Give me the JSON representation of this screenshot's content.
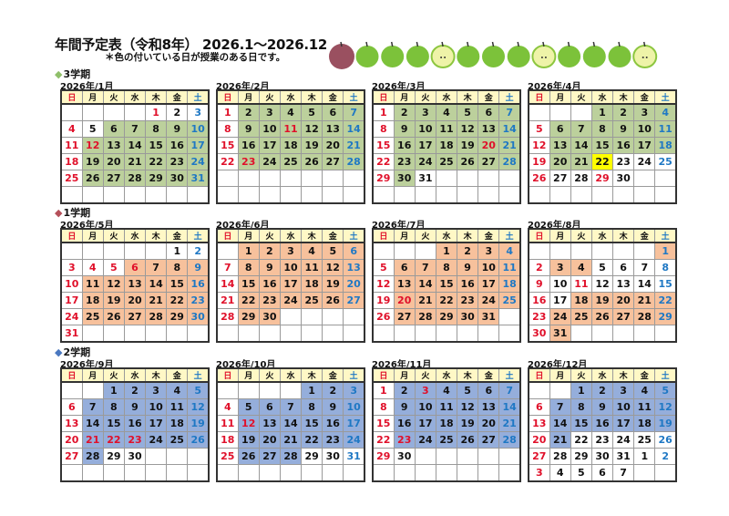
{
  "title": "年間予定表（令和8年） 2026.1～2026.12",
  "note": "＊色の付いている日が授業のある日です。",
  "weekday_headers": [
    "日",
    "月",
    "火",
    "水",
    "木",
    "金",
    "土"
  ],
  "colors": {
    "term3": "#bcd09c",
    "term1": "#f7c19c",
    "term2": "#95aedb",
    "special": "#ffff00",
    "sunday": "#e0102a",
    "saturday": "#1f78c4",
    "header": "#fff8c6"
  },
  "apples": [
    "red-apple",
    "green-apple",
    "green-apple",
    "green-apple",
    "cut-green-apple",
    "green-apple",
    "green-apple",
    "green-apple",
    "cut-green-apple",
    "green-apple",
    "green-apple",
    "green-apple",
    "cut-green-apple"
  ],
  "terms": [
    {
      "label": "3学期",
      "diamond_color": "#8fbf6a",
      "color_key": "term3",
      "months": [
        {
          "label": "2026年/1月",
          "weeks": [
            [
              0,
              0,
              0,
              0,
              1,
              2,
              3
            ],
            [
              4,
              5,
              6,
              7,
              8,
              9,
              10
            ],
            [
              11,
              12,
              13,
              14,
              15,
              16,
              17
            ],
            [
              18,
              19,
              20,
              21,
              22,
              23,
              24
            ],
            [
              25,
              26,
              27,
              28,
              29,
              30,
              31
            ],
            [
              0,
              0,
              0,
              0,
              0,
              0,
              0
            ]
          ],
          "shade": [
            "0000000",
            "0011111",
            "0111111",
            "0111111",
            "0111111",
            "0000000"
          ],
          "red": [
            1,
            12
          ]
        },
        {
          "label": "2026年/2月",
          "weeks": [
            [
              1,
              2,
              3,
              4,
              5,
              6,
              7
            ],
            [
              8,
              9,
              10,
              11,
              12,
              13,
              14
            ],
            [
              15,
              16,
              17,
              18,
              19,
              20,
              21
            ],
            [
              22,
              23,
              24,
              25,
              26,
              27,
              28
            ],
            [
              0,
              0,
              0,
              0,
              0,
              0,
              0
            ],
            [
              0,
              0,
              0,
              0,
              0,
              0,
              0
            ]
          ],
          "shade": [
            "0111111",
            "0111111",
            "0111111",
            "0111111",
            "0000000",
            "0000000"
          ],
          "red": [
            11,
            23
          ]
        },
        {
          "label": "2026年/3月",
          "weeks": [
            [
              1,
              2,
              3,
              4,
              5,
              6,
              7
            ],
            [
              8,
              9,
              10,
              11,
              12,
              13,
              14
            ],
            [
              15,
              16,
              17,
              18,
              19,
              20,
              21
            ],
            [
              22,
              23,
              24,
              25,
              26,
              27,
              28
            ],
            [
              29,
              30,
              31,
              0,
              0,
              0,
              0
            ],
            [
              0,
              0,
              0,
              0,
              0,
              0,
              0
            ]
          ],
          "shade": [
            "0111111",
            "0111111",
            "0111111",
            "0111111",
            "0100000",
            "0000000"
          ],
          "red": [
            20
          ]
        },
        {
          "label": "2026年/4月",
          "weeks": [
            [
              0,
              0,
              0,
              1,
              2,
              3,
              4
            ],
            [
              5,
              6,
              7,
              8,
              9,
              10,
              11
            ],
            [
              12,
              13,
              14,
              15,
              16,
              17,
              18
            ],
            [
              19,
              20,
              21,
              22,
              23,
              24,
              25
            ],
            [
              26,
              27,
              28,
              29,
              30,
              0,
              0
            ],
            [
              0,
              0,
              0,
              0,
              0,
              0,
              0
            ]
          ],
          "shade": [
            "0001111",
            "0111111",
            "0111111",
            "011y000",
            "0000000",
            "0000000"
          ],
          "red": [
            29
          ]
        }
      ]
    },
    {
      "label": "1学期",
      "diamond_color": "#b5505a",
      "color_key": "term1",
      "months": [
        {
          "label": "2026年/5月",
          "weeks": [
            [
              0,
              0,
              0,
              0,
              0,
              1,
              2
            ],
            [
              3,
              4,
              5,
              6,
              7,
              8,
              9
            ],
            [
              10,
              11,
              12,
              13,
              14,
              15,
              16
            ],
            [
              17,
              18,
              19,
              20,
              21,
              22,
              23
            ],
            [
              24,
              25,
              26,
              27,
              28,
              29,
              30
            ],
            [
              31,
              0,
              0,
              0,
              0,
              0,
              0
            ]
          ],
          "shade": [
            "0000000",
            "0001111",
            "0111111",
            "0111111",
            "0111111",
            "0000000"
          ],
          "red": [
            4,
            5,
            6
          ]
        },
        {
          "label": "2026年/6月",
          "weeks": [
            [
              0,
              1,
              2,
              3,
              4,
              5,
              6
            ],
            [
              7,
              8,
              9,
              10,
              11,
              12,
              13
            ],
            [
              14,
              15,
              16,
              17,
              18,
              19,
              20
            ],
            [
              21,
              22,
              23,
              24,
              25,
              26,
              27
            ],
            [
              28,
              29,
              30,
              0,
              0,
              0,
              0
            ],
            [
              0,
              0,
              0,
              0,
              0,
              0,
              0
            ]
          ],
          "shade": [
            "0111111",
            "0111111",
            "0111111",
            "0111111",
            "0110000",
            "0000000"
          ],
          "red": []
        },
        {
          "label": "2026年/7月",
          "weeks": [
            [
              0,
              0,
              0,
              1,
              2,
              3,
              4
            ],
            [
              5,
              6,
              7,
              8,
              9,
              10,
              11
            ],
            [
              12,
              13,
              14,
              15,
              16,
              17,
              18
            ],
            [
              19,
              20,
              21,
              22,
              23,
              24,
              25
            ],
            [
              26,
              27,
              28,
              29,
              30,
              31,
              0
            ],
            [
              0,
              0,
              0,
              0,
              0,
              0,
              0
            ]
          ],
          "shade": [
            "0001111",
            "0111111",
            "0111111",
            "0111111",
            "0111110",
            "0000000"
          ],
          "red": [
            20
          ]
        },
        {
          "label": "2026年/8月",
          "weeks": [
            [
              0,
              0,
              0,
              0,
              0,
              0,
              1
            ],
            [
              2,
              3,
              4,
              5,
              6,
              7,
              8
            ],
            [
              9,
              10,
              11,
              12,
              13,
              14,
              15
            ],
            [
              16,
              17,
              18,
              19,
              20,
              21,
              22
            ],
            [
              23,
              24,
              25,
              26,
              27,
              28,
              29
            ],
            [
              30,
              31,
              0,
              0,
              0,
              0,
              0
            ]
          ],
          "shade": [
            "0000001",
            "0110000",
            "0000000",
            "0011111",
            "0111111",
            "0100000"
          ],
          "red": [
            11
          ]
        }
      ]
    },
    {
      "label": "2学期",
      "diamond_color": "#4a78c0",
      "color_key": "term2",
      "months": [
        {
          "label": "2026年/9月",
          "weeks": [
            [
              0,
              0,
              1,
              2,
              3,
              4,
              5
            ],
            [
              6,
              7,
              8,
              9,
              10,
              11,
              12
            ],
            [
              13,
              14,
              15,
              16,
              17,
              18,
              19
            ],
            [
              20,
              21,
              22,
              23,
              24,
              25,
              26
            ],
            [
              27,
              28,
              29,
              30,
              0,
              0,
              0
            ],
            [
              0,
              0,
              0,
              0,
              0,
              0,
              0
            ]
          ],
          "shade": [
            "0011111",
            "0111111",
            "0111111",
            "0111111",
            "0100000",
            "0000000"
          ],
          "red": [
            21,
            22,
            23
          ]
        },
        {
          "label": "2026年/10月",
          "weeks": [
            [
              0,
              0,
              0,
              0,
              1,
              2,
              3
            ],
            [
              4,
              5,
              6,
              7,
              8,
              9,
              10
            ],
            [
              11,
              12,
              13,
              14,
              15,
              16,
              17
            ],
            [
              18,
              19,
              20,
              21,
              22,
              23,
              24
            ],
            [
              25,
              26,
              27,
              28,
              29,
              30,
              31
            ],
            [
              0,
              0,
              0,
              0,
              0,
              0,
              0
            ]
          ],
          "shade": [
            "0000111",
            "0111111",
            "0111111",
            "0111111",
            "0111000",
            "0000000"
          ],
          "red": [
            12
          ]
        },
        {
          "label": "2026年/11月",
          "weeks": [
            [
              1,
              2,
              3,
              4,
              5,
              6,
              7
            ],
            [
              8,
              9,
              10,
              11,
              12,
              13,
              14
            ],
            [
              15,
              16,
              17,
              18,
              19,
              20,
              21
            ],
            [
              22,
              23,
              24,
              25,
              26,
              27,
              28
            ],
            [
              29,
              30,
              0,
              0,
              0,
              0,
              0
            ],
            [
              0,
              0,
              0,
              0,
              0,
              0,
              0
            ]
          ],
          "shade": [
            "0111111",
            "0111111",
            "0111111",
            "0111111",
            "0000000",
            "0000000"
          ],
          "red": [
            3,
            23
          ]
        },
        {
          "label": "2026年/12月",
          "weeks": [
            [
              0,
              0,
              1,
              2,
              3,
              4,
              5
            ],
            [
              6,
              7,
              8,
              9,
              10,
              11,
              12
            ],
            [
              13,
              14,
              15,
              16,
              17,
              18,
              19
            ],
            [
              20,
              21,
              22,
              23,
              24,
              25,
              26
            ],
            [
              27,
              28,
              29,
              30,
              31,
              1,
              2
            ],
            [
              3,
              4,
              5,
              6,
              7,
              0,
              0
            ]
          ],
          "shade": [
            "0011111",
            "0111111",
            "0111111",
            "0100000",
            "0000000",
            "0000000"
          ],
          "red": []
        }
      ]
    }
  ]
}
